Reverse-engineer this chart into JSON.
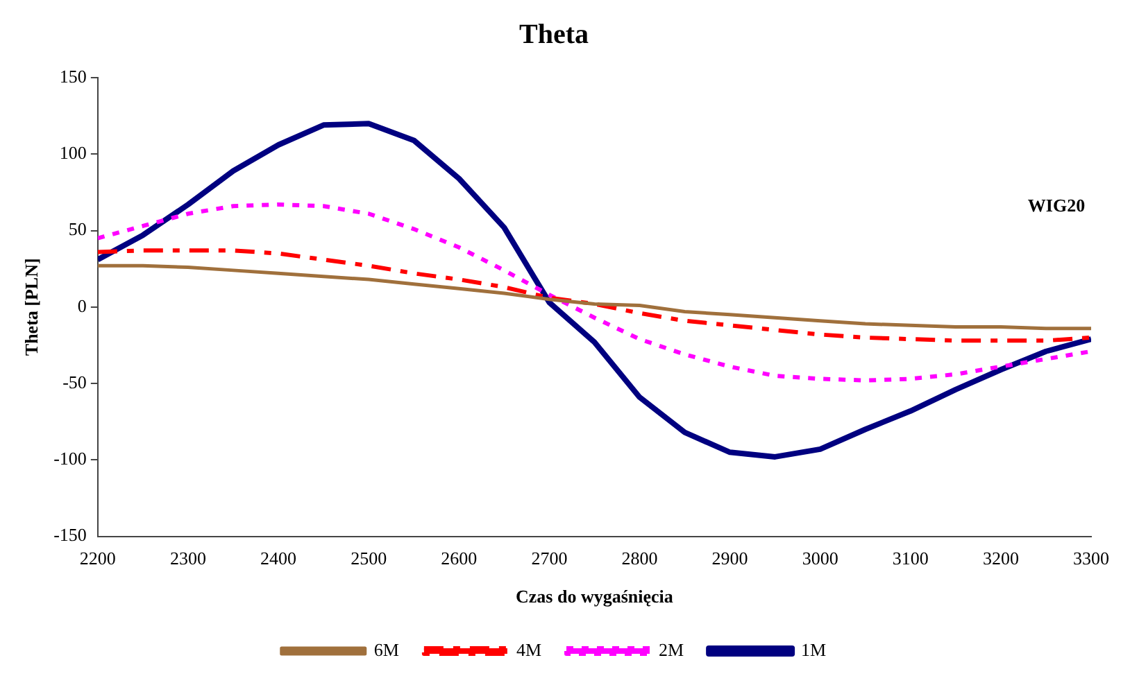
{
  "chart_data": {
    "type": "line",
    "title": "Theta",
    "xlabel": "Czas do wygaśnięcia",
    "ylabel": "Theta [PLN]",
    "annotations": [
      "WIG20"
    ],
    "x": [
      2200,
      2250,
      2300,
      2350,
      2400,
      2450,
      2500,
      2550,
      2600,
      2650,
      2700,
      2750,
      2800,
      2850,
      2900,
      2950,
      3000,
      3050,
      3100,
      3150,
      3200,
      3250,
      3300
    ],
    "xlim": [
      2200,
      3300
    ],
    "xticks": [
      2200,
      2300,
      2400,
      2500,
      2600,
      2700,
      2800,
      2900,
      3000,
      3100,
      3200,
      3300
    ],
    "ylim": [
      -150,
      150
    ],
    "yticks": [
      -150,
      -100,
      -50,
      0,
      50,
      100,
      150
    ],
    "grid": false,
    "legend": "bottom",
    "marker": "none",
    "series": [
      {
        "name": "6M",
        "color": "#a0703c",
        "line_style": "solid",
        "values": [
          27,
          27,
          26,
          24,
          22,
          20,
          18,
          15,
          12,
          9,
          5,
          2,
          1,
          -3,
          -5,
          -7,
          -9,
          -11,
          -12,
          -13,
          -13,
          -14,
          -14
        ]
      },
      {
        "name": "4M",
        "color": "#ff0000",
        "line_style": "dashdot",
        "values": [
          36,
          37,
          37,
          37,
          35,
          31,
          27,
          22,
          18,
          13,
          6,
          2,
          -4,
          -9,
          -12,
          -15,
          -18,
          -20,
          -21,
          -22,
          -22,
          -22,
          -20
        ]
      },
      {
        "name": "2M",
        "color": "#ff00ff",
        "line_style": "dotted",
        "values": [
          45,
          53,
          61,
          66,
          67,
          66,
          61,
          51,
          39,
          24,
          8,
          -7,
          -21,
          -31,
          -39,
          -45,
          -47,
          -48,
          -47,
          -44,
          -39,
          -34,
          -29
        ]
      },
      {
        "name": "1M",
        "color": "#000080",
        "line_style": "solid",
        "values": [
          31,
          47,
          67,
          89,
          106,
          119,
          120,
          109,
          84,
          52,
          3,
          -23,
          -59,
          -82,
          -95,
          -98,
          -93,
          -80,
          -68,
          -54,
          -41,
          -29,
          -21
        ]
      }
    ]
  }
}
